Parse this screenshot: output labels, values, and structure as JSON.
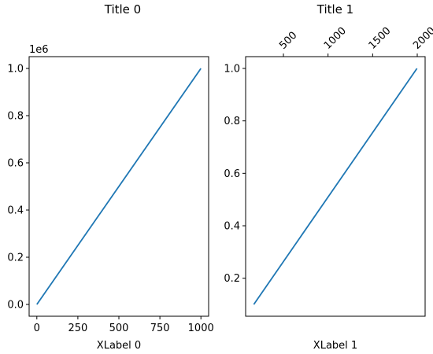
{
  "chart_data": [
    {
      "type": "line",
      "title": "Title 0",
      "xlabel": "XLabel 0",
      "ylabel": "",
      "offset_text": "1e6",
      "xlim": [
        -47,
        1047
      ],
      "ylim": [
        -50000,
        1050000
      ],
      "x_ticks": [
        0,
        250,
        500,
        750,
        1000
      ],
      "x_tick_labels": [
        "0",
        "250",
        "500",
        "750",
        "1000"
      ],
      "y_ticks": [
        0,
        200000,
        400000,
        600000,
        800000,
        1000000
      ],
      "y_tick_labels": [
        "0.0",
        "0.2",
        "0.4",
        "0.6",
        "0.8",
        "1.0"
      ],
      "grid": false,
      "series": [
        {
          "color": "#1f77b4",
          "x": [
            0,
            1000
          ],
          "y": [
            0,
            1000000
          ]
        }
      ]
    },
    {
      "type": "line",
      "title": "Title 1",
      "xlabel": "XLabel 1",
      "ylabel": "",
      "xlim": [
        0.055,
        1.045
      ],
      "ylim": [
        0.055,
        1.045
      ],
      "y_ticks": [
        0.2,
        0.4,
        0.6,
        0.8,
        1.0
      ],
      "y_tick_labels": [
        "0.2",
        "0.4",
        "0.6",
        "0.8",
        "1.0"
      ],
      "top_axis": {
        "ticks": [
          500,
          1000,
          1500,
          2000
        ],
        "tick_labels": [
          "500",
          "1000",
          "1500",
          "2000"
        ],
        "label_rotation": -45
      },
      "grid": false,
      "series": [
        {
          "color": "#1f77b4",
          "x": [
            0.1,
            1.0
          ],
          "y": [
            0.1,
            1.0
          ]
        }
      ]
    }
  ]
}
